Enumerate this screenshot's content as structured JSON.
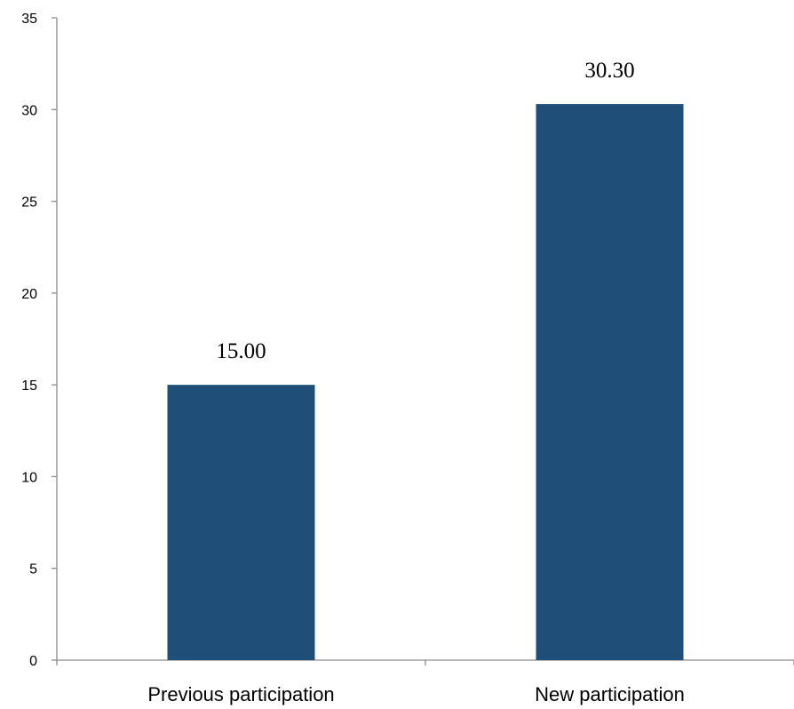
{
  "chart_data": {
    "type": "bar",
    "title": "",
    "xlabel": "",
    "ylabel": "",
    "categories": [
      "Previous participation",
      "New participation"
    ],
    "values": [
      15.0,
      30.3
    ],
    "data_labels": [
      "15.00",
      "30.30"
    ],
    "ylim": [
      0,
      35
    ],
    "yticks": [
      0,
      5,
      10,
      15,
      20,
      25,
      30,
      35
    ],
    "grid": false,
    "legend": "none",
    "bar_color": "#1f4e79"
  }
}
